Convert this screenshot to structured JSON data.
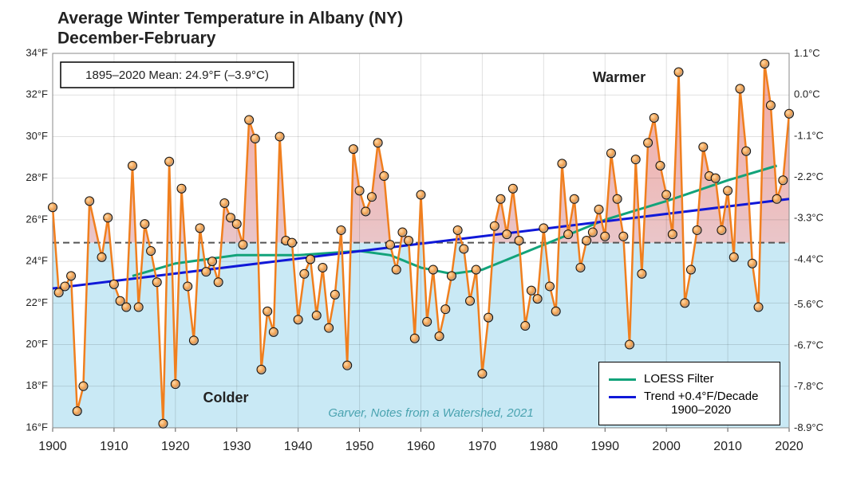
{
  "chart_data": {
    "type": "line",
    "title": "Average Winter Temperature in Albany (NY)",
    "subtitle": "December-February",
    "x": [
      1900,
      1901,
      1902,
      1903,
      1904,
      1905,
      1906,
      1908,
      1909,
      1910,
      1911,
      1912,
      1913,
      1914,
      1915,
      1916,
      1917,
      1918,
      1919,
      1920,
      1921,
      1922,
      1923,
      1924,
      1925,
      1926,
      1927,
      1928,
      1929,
      1930,
      1931,
      1932,
      1933,
      1934,
      1935,
      1936,
      1937,
      1938,
      1939,
      1940,
      1941,
      1942,
      1943,
      1944,
      1945,
      1946,
      1947,
      1948,
      1949,
      1950,
      1951,
      1952,
      1953,
      1954,
      1955,
      1956,
      1957,
      1958,
      1959,
      1960,
      1961,
      1962,
      1963,
      1964,
      1965,
      1966,
      1967,
      1968,
      1969,
      1970,
      1971,
      1972,
      1973,
      1974,
      1975,
      1976,
      1977,
      1978,
      1979,
      1980,
      1981,
      1982,
      1983,
      1984,
      1985,
      1986,
      1987,
      1988,
      1989,
      1990,
      1991,
      1992,
      1993,
      1994,
      1995,
      1996,
      1997,
      1998,
      1999,
      2000,
      2001,
      2002,
      2003,
      2004,
      2005,
      2006,
      2007,
      2008,
      2009,
      2010,
      2011,
      2012,
      2013,
      2014,
      2015,
      2016,
      2017,
      2018,
      2019,
      2020
    ],
    "values": [
      26.6,
      22.5,
      22.8,
      23.3,
      16.8,
      18.0,
      26.9,
      24.2,
      26.1,
      22.9,
      22.1,
      21.8,
      28.6,
      21.8,
      25.8,
      24.5,
      23.0,
      16.2,
      28.8,
      18.1,
      27.5,
      22.8,
      20.2,
      25.6,
      23.5,
      24.0,
      23.0,
      26.8,
      26.1,
      25.8,
      24.8,
      30.8,
      29.9,
      18.8,
      21.6,
      20.6,
      30.0,
      25.0,
      24.9,
      21.2,
      23.4,
      24.1,
      21.4,
      23.7,
      20.8,
      22.4,
      25.5,
      19.0,
      29.4,
      27.4,
      26.4,
      27.1,
      29.7,
      28.1,
      24.8,
      23.6,
      25.4,
      25.0,
      20.3,
      27.2,
      21.1,
      23.6,
      20.4,
      21.7,
      23.3,
      25.5,
      24.6,
      22.1,
      23.6,
      18.6,
      21.3,
      25.7,
      27.0,
      25.3,
      27.5,
      25.0,
      20.9,
      22.6,
      22.2,
      25.6,
      22.8,
      21.6,
      28.7,
      25.3,
      27.0,
      23.7,
      25.0,
      25.4,
      26.5,
      25.2,
      29.2,
      27.0,
      25.2,
      20.0,
      28.9,
      23.4,
      29.7,
      30.9,
      28.6,
      27.2,
      25.3,
      33.1,
      22.0,
      23.6,
      25.5,
      29.5,
      28.1,
      28.0,
      25.5,
      27.4,
      24.2,
      32.3,
      29.3,
      23.9,
      21.8,
      33.5,
      31.5,
      27.0,
      27.9,
      31.1
    ],
    "color": "#f07f1e",
    "series": [
      {
        "name": "LOESS Filter",
        "color": "#12a37a",
        "x": [
          1913,
          1920,
          1930,
          1940,
          1950,
          1955,
          1960,
          1965,
          1970,
          1975,
          1980,
          1990,
          2000,
          2010,
          2018
        ],
        "values": [
          23.3,
          23.9,
          24.3,
          24.3,
          24.5,
          24.3,
          23.7,
          23.4,
          23.6,
          24.2,
          24.8,
          26.0,
          26.9,
          27.9,
          28.6
        ]
      },
      {
        "name": "Trend +0.4°F/Decade\n1900–2020",
        "color": "#1018d8",
        "x": [
          1900,
          2020
        ],
        "values": [
          22.7,
          27.0
        ]
      }
    ],
    "mean": 24.9,
    "mean_label": "1895–2020 Mean: 24.9°F (–3.9°C)",
    "annotations": [
      "Warmer",
      "Colder",
      "Garver, Notes from a Watershed, 2021"
    ],
    "xlim": [
      1900,
      2020
    ],
    "xticks": [
      1900,
      1910,
      1920,
      1930,
      1940,
      1950,
      1960,
      1970,
      1980,
      1990,
      2000,
      2010,
      2020
    ],
    "ylim": [
      16,
      34
    ],
    "yticks": [
      {
        "value": 16,
        "label": "16°F"
      },
      {
        "value": 18,
        "label": "18°F"
      },
      {
        "value": 20,
        "label": "20°F"
      },
      {
        "value": 22,
        "label": "22°F"
      },
      {
        "value": 24,
        "label": "24°F"
      },
      {
        "value": 26,
        "label": "26°F"
      },
      {
        "value": 28,
        "label": "28°F"
      },
      {
        "value": 30,
        "label": "30°F"
      },
      {
        "value": 32,
        "label": "32°F"
      },
      {
        "value": 34,
        "label": "34°F"
      }
    ],
    "y2lim": [
      -8.89,
      1.11
    ],
    "y2ticks": [
      {
        "value": 1.1,
        "label": "1.1°C"
      },
      {
        "value": 0.0,
        "label": "0.0°C"
      },
      {
        "value": -1.1,
        "label": "-1.1°C"
      },
      {
        "value": -2.2,
        "label": "-2.2°C"
      },
      {
        "value": -3.3,
        "label": "-3.3°C"
      },
      {
        "value": -4.4,
        "label": "-4.4°C"
      },
      {
        "value": -5.6,
        "label": "-5.6°C"
      },
      {
        "value": -6.7,
        "label": "-6.7°C"
      },
      {
        "value": -7.8,
        "label": "-7.8°C"
      },
      {
        "value": -8.9,
        "label": "-8.9°C"
      }
    ],
    "grid": true
  }
}
